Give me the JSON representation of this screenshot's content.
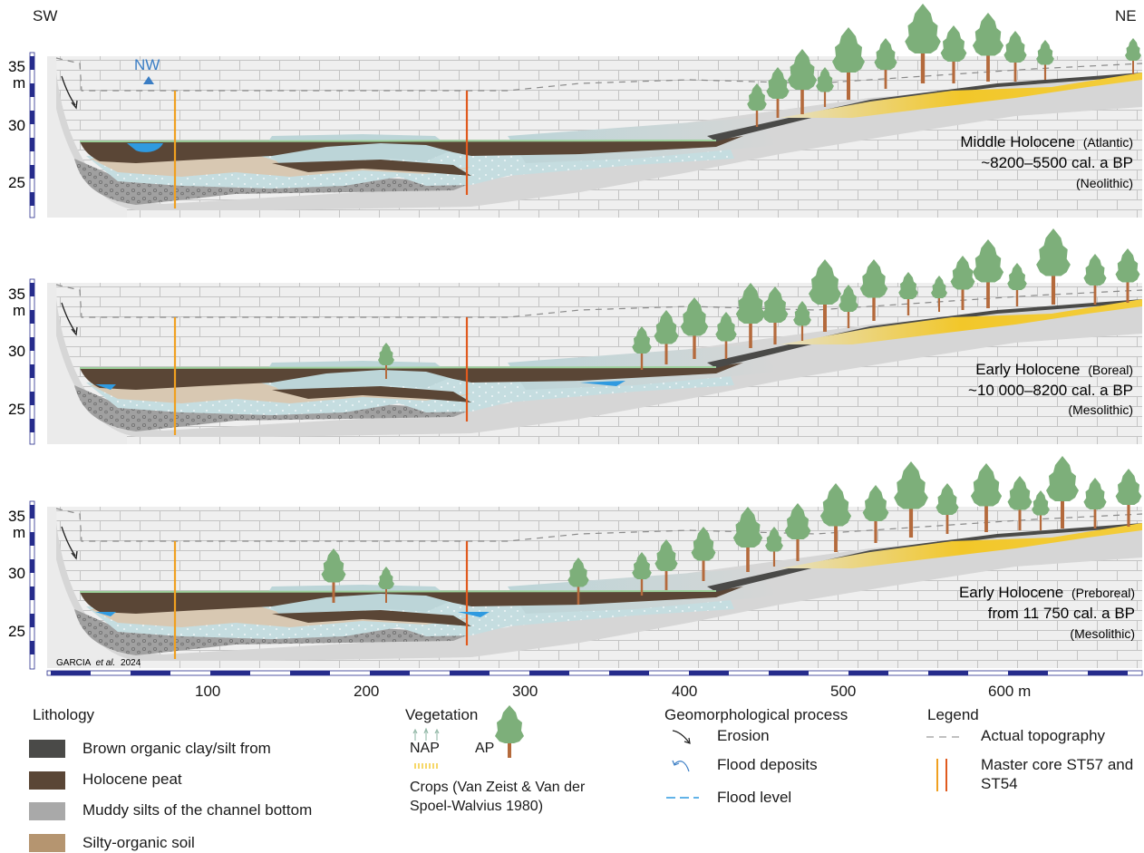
{
  "orientation": {
    "left": "SW",
    "right": "NE"
  },
  "nw_label": "NW",
  "credit": {
    "author": "GARCIA",
    "etal": "et al.",
    "year": "2024"
  },
  "y_axis": {
    "ticks": [
      "35",
      "30",
      "25"
    ],
    "unit": "m"
  },
  "x_axis": {
    "ticks": [
      "100",
      "200",
      "300",
      "400",
      "500",
      "600 m"
    ]
  },
  "panels": [
    {
      "period": "Middle Holocene",
      "sub": "(Atlantic)",
      "age": "~8200–5500 cal. a BP",
      "culture": "(Neolithic)"
    },
    {
      "period": "Early Holocene",
      "sub": "(Boreal)",
      "age": "~10 000–8200 cal. a BP",
      "culture": "(Mesolithic)"
    },
    {
      "period": "Early Holocene",
      "sub": "(Preboreal)",
      "age": "from 11 750 cal. a BP",
      "culture": "(Mesolithic)"
    }
  ],
  "lithology": {
    "title": "Lithology",
    "items": [
      {
        "label": "Brown organic clay/silt from",
        "color": "#4a4a48"
      },
      {
        "label": "Holocene peat",
        "color": "#5a4636"
      },
      {
        "label": "Muddy silts of the channel bottom",
        "color": "#a9a9a9"
      },
      {
        "label": "Silty-organic soil",
        "color": "#b59570"
      }
    ]
  },
  "vegetation": {
    "title": "Vegetation",
    "nap": "NAP",
    "ap": "AP",
    "crops": "Crops (Van Zeist & Van der Spoel-Walvius 1980)"
  },
  "geomorph": {
    "title": "Geomorphological process",
    "items": [
      "Erosion",
      "Flood deposits",
      "Flood level"
    ]
  },
  "legend": {
    "title": "Legend",
    "items": [
      "Actual topography",
      "Master core ST57 and ST54"
    ]
  },
  "colors": {
    "peat": "#5a4636",
    "silt": "#bcd5d8",
    "gravel": "#9b9b9b",
    "soil": "#d8c8b2",
    "limestone": "#efefef",
    "slope": "#d6d6d6",
    "yellow": "#f2c72a",
    "tree": "#7daf7a",
    "trunk": "#b46a3c",
    "water": "#2f9ae0",
    "core1": "#f0a020",
    "core2": "#e05a1e",
    "axis": "#262c8c"
  }
}
